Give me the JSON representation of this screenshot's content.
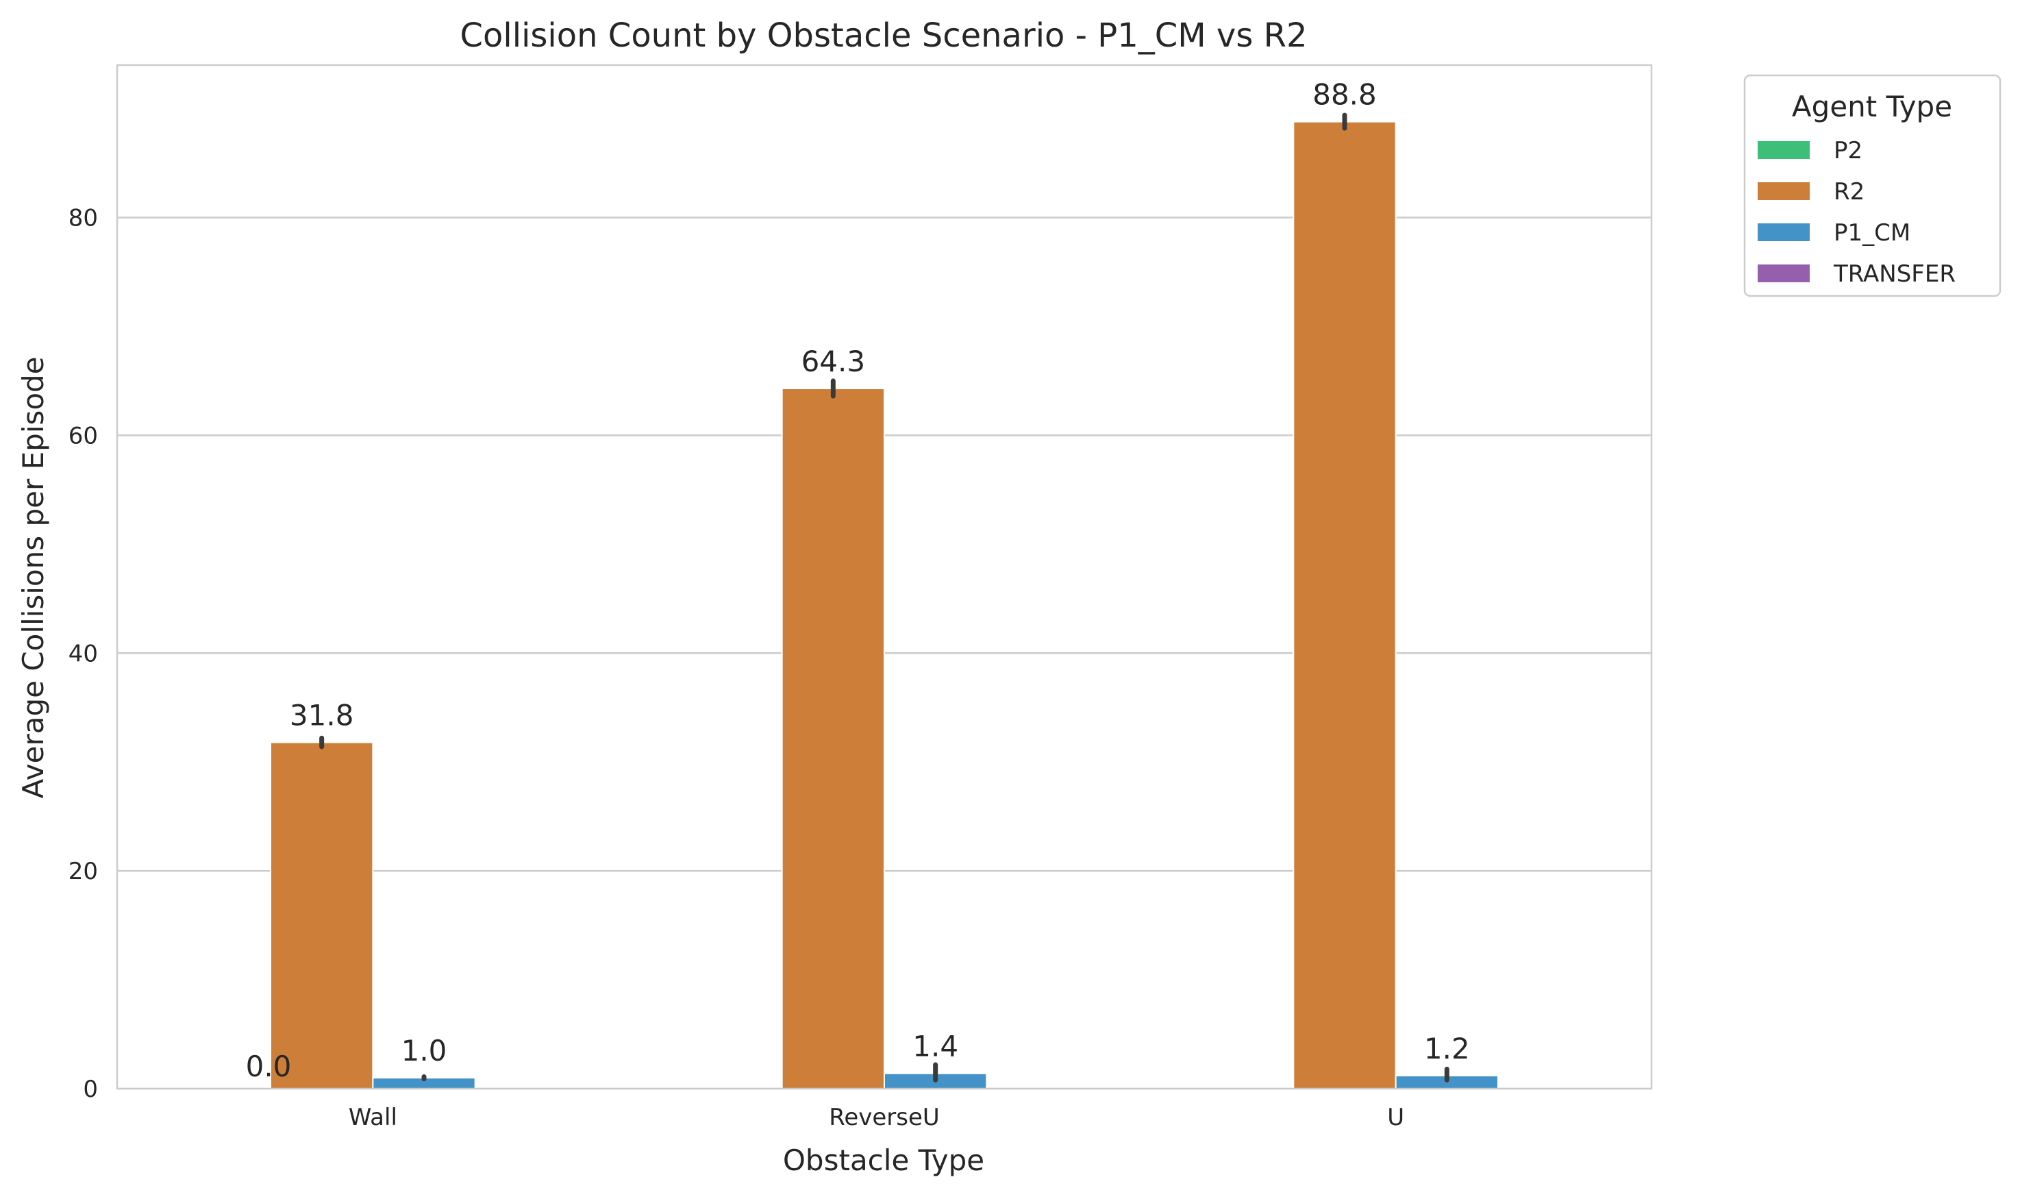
{
  "chart_data": {
    "type": "bar",
    "title": "Collision Count by Obstacle Scenario - P1_CM vs R2",
    "xlabel": "Obstacle Type",
    "ylabel": "Average Collisions per Episode",
    "categories": [
      "Wall",
      "ReverseU",
      "U"
    ],
    "yticks": [
      0,
      20,
      40,
      60,
      80
    ],
    "ylim": [
      0,
      94
    ],
    "grid": true,
    "legend": {
      "title": "Agent Type",
      "placement": "outside-top-right",
      "entries": [
        {
          "name": "P2",
          "color": "#3dbf7a"
        },
        {
          "name": "R2",
          "color": "#cd7f3a"
        },
        {
          "name": "P1_CM",
          "color": "#4393c8"
        },
        {
          "name": "TRANSFER",
          "color": "#9460ad"
        }
      ]
    },
    "series": [
      {
        "name": "P2",
        "color": "#3dbf7a",
        "values": [
          null,
          null,
          null
        ],
        "labels": [
          null,
          null,
          null
        ]
      },
      {
        "name": "R2",
        "color": "#cd7f3a",
        "values": [
          31.8,
          64.3,
          88.8
        ],
        "labels": [
          "31.8",
          "64.3",
          "88.8"
        ],
        "err": [
          [
            31.4,
            32.2
          ],
          [
            63.6,
            65.0
          ],
          [
            88.2,
            89.4
          ]
        ]
      },
      {
        "name": "P1_CM",
        "color": "#4393c8",
        "values": [
          1.0,
          1.4,
          1.2
        ],
        "labels": [
          "1.0",
          "1.4",
          "1.2"
        ],
        "err": [
          [
            0.9,
            1.1
          ],
          [
            0.8,
            2.2
          ],
          [
            0.8,
            1.8
          ]
        ]
      },
      {
        "name": "TRANSFER",
        "color": "#9460ad",
        "values": [
          null,
          null,
          null
        ],
        "labels": [
          null,
          null,
          null
        ]
      }
    ],
    "extra_labels": [
      {
        "category": "Wall",
        "text": "0.0"
      }
    ]
  }
}
